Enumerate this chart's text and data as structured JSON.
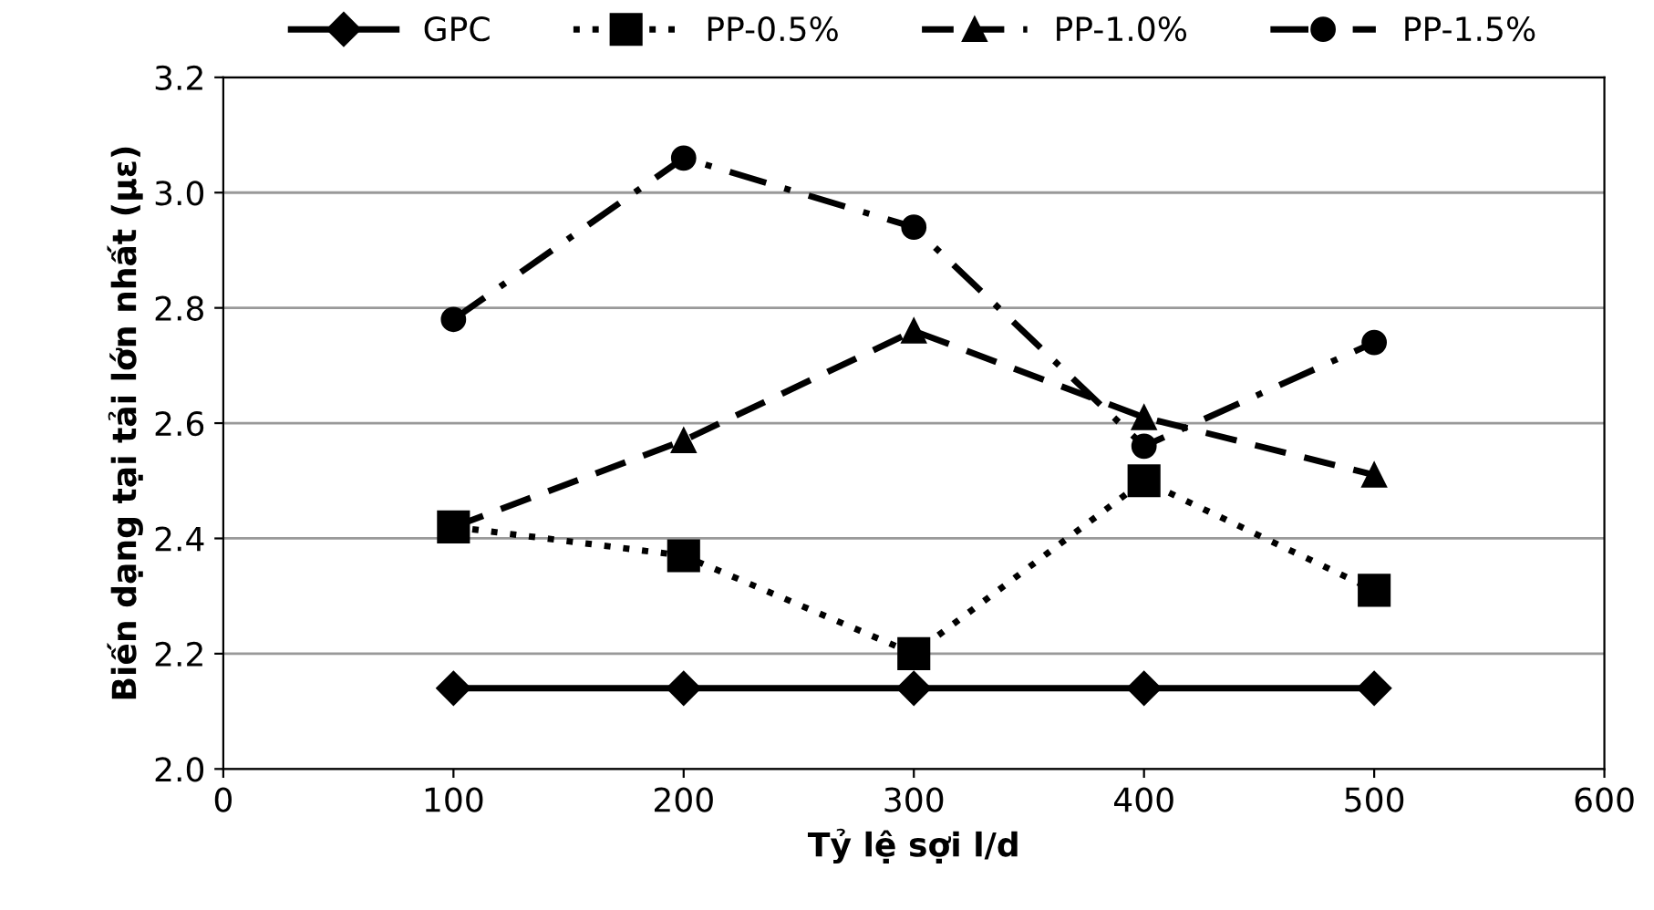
{
  "chart_data": {
    "type": "line",
    "xlabel": "Tỷ lệ sợi l/d",
    "ylabel": "Biến dạng tại tải lớn nhất (με)",
    "x": [
      100,
      200,
      300,
      400,
      500
    ],
    "series": [
      {
        "name": "GPC",
        "color": "#000000",
        "marker": "diamond",
        "line_style": "solid",
        "values": [
          2.14,
          2.14,
          2.14,
          2.14,
          2.14
        ]
      },
      {
        "name": "PP-0.5%",
        "color": "#000000",
        "marker": "square",
        "line_style": "dotted",
        "values": [
          2.42,
          2.37,
          2.2,
          2.5,
          2.31
        ]
      },
      {
        "name": "PP-1.0%",
        "color": "#000000",
        "marker": "triangle",
        "line_style": "dashed",
        "values": [
          2.42,
          2.57,
          2.76,
          2.61,
          2.51
        ]
      },
      {
        "name": "PP-1.5%",
        "color": "#000000",
        "marker": "circle",
        "line_style": "dashdot",
        "values": [
          2.78,
          3.06,
          2.94,
          2.56,
          2.74
        ]
      }
    ],
    "xlim": [
      0,
      600
    ],
    "xticks": [
      0,
      100,
      200,
      300,
      400,
      500,
      600
    ],
    "ylim": [
      2.0,
      3.2
    ],
    "yticks": [
      {
        "value": 2.0,
        "label": "2.0"
      },
      {
        "value": 2.2,
        "label": "2.2"
      },
      {
        "value": 2.4,
        "label": "2.4"
      },
      {
        "value": 2.6,
        "label": "2.6"
      },
      {
        "value": 2.8,
        "label": "2.8"
      },
      {
        "value": 3.0,
        "label": "3.0"
      },
      {
        "value": 3.2,
        "label": "3.2"
      }
    ],
    "grid": "y",
    "legend": "top"
  }
}
